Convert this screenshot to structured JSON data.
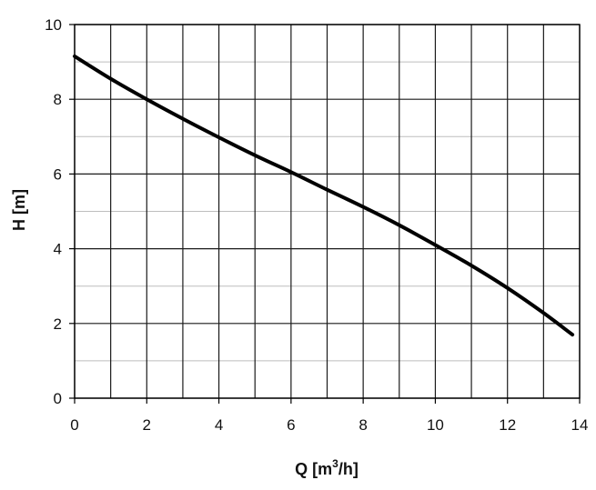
{
  "chart_data": {
    "type": "line",
    "title": "",
    "xlabel": "Q [m",
    "xlabel_sup": "3",
    "xlabel_tail": "/h]",
    "ylabel": "H [m]",
    "xlim": [
      0,
      14
    ],
    "ylim": [
      0,
      10
    ],
    "x_ticks": [
      0,
      2,
      4,
      6,
      8,
      10,
      12,
      14
    ],
    "y_ticks": [
      0,
      2,
      4,
      6,
      8,
      10
    ],
    "x_tick_labels": [
      "0",
      "2",
      "4",
      "6",
      "8",
      "10",
      "12",
      "14"
    ],
    "y_tick_labels": [
      "0",
      "2",
      "4",
      "6",
      "8",
      "10"
    ],
    "grid": true,
    "minor_grid": true,
    "series": [
      {
        "color": "#000000",
        "x": [
          0,
          1,
          2,
          3,
          4,
          5,
          6,
          7,
          8,
          9,
          10,
          11,
          12,
          13,
          13.8
        ],
        "y": [
          9.15,
          8.55,
          8.0,
          7.48,
          6.98,
          6.5,
          6.05,
          5.58,
          5.12,
          4.63,
          4.1,
          3.55,
          2.95,
          2.28,
          1.7
        ]
      }
    ]
  }
}
